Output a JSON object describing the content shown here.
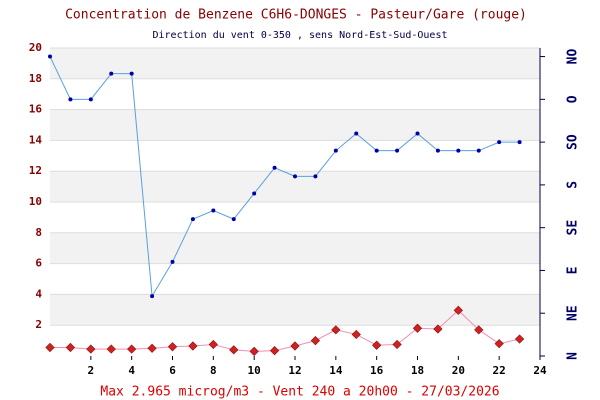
{
  "chart_data": {
    "type": "line",
    "title": "Concentration de Benzene C6H6-DONGES - Pasteur/Gare (rouge)",
    "subtitle": "Direction du vent 0-350 , sens Nord-Est-Sud-Ouest",
    "footer": "Max 2.965 microg/m3 - Vent 240  a 20h00 - 27/03/2026",
    "x": [
      0,
      1,
      2,
      3,
      4,
      5,
      6,
      7,
      8,
      9,
      10,
      11,
      12,
      13,
      14,
      15,
      16,
      17,
      18,
      19,
      20,
      21,
      22,
      23
    ],
    "xlim": [
      0,
      24
    ],
    "xticks": [
      2,
      4,
      6,
      8,
      10,
      12,
      14,
      16,
      18,
      20,
      22,
      24
    ],
    "ylim": [
      0,
      20
    ],
    "yticks": [
      2,
      4,
      6,
      8,
      10,
      12,
      14,
      16,
      18,
      20
    ],
    "y2lim": [
      0,
      360
    ],
    "y2ticks": [
      {
        "value": 0,
        "label": "N"
      },
      {
        "value": 50,
        "label": "NE"
      },
      {
        "value": 100,
        "label": "E"
      },
      {
        "value": 150,
        "label": "SE"
      },
      {
        "value": 200,
        "label": "S"
      },
      {
        "value": 250,
        "label": "SO"
      },
      {
        "value": 300,
        "label": "O"
      },
      {
        "value": 350,
        "label": "NO"
      }
    ],
    "grid": true,
    "series": [
      {
        "axis": "y2",
        "color": "#5aa0e0",
        "marker_color": "#0000aa",
        "values": [
          350,
          300,
          300,
          330,
          330,
          70,
          110,
          160,
          170,
          160,
          190,
          220,
          210,
          210,
          240,
          260,
          240,
          240,
          260,
          240,
          240,
          240,
          250,
          250
        ]
      },
      {
        "color": "#f090b0",
        "marker_color": "#cc2222",
        "values": [
          0.55,
          0.55,
          0.45,
          0.45,
          0.45,
          0.5,
          0.6,
          0.65,
          0.75,
          0.4,
          0.3,
          0.35,
          0.65,
          1.0,
          1.7,
          1.4,
          0.7,
          0.75,
          1.8,
          1.75,
          2.965,
          1.7,
          0.8,
          1.1
        ]
      }
    ]
  }
}
